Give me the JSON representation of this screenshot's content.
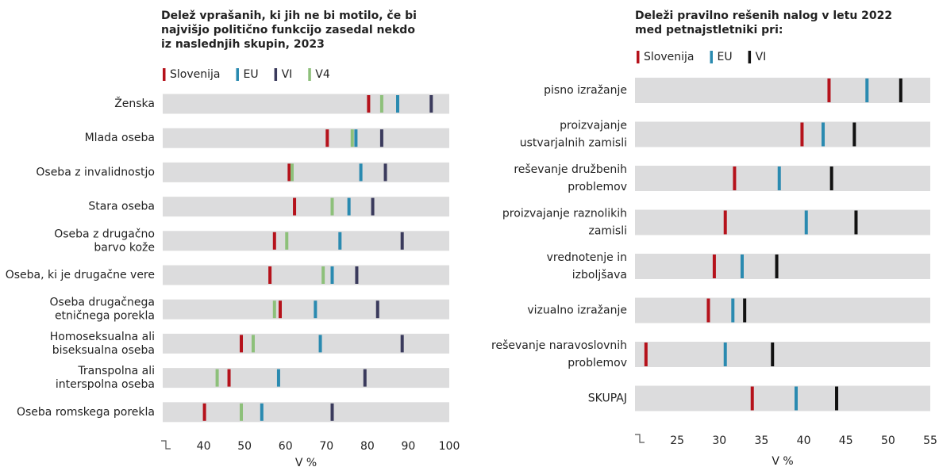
{
  "chart_data": [
    {
      "type": "strip",
      "title": "Delež vprašanih, ki jih ne bi motilo, če bi\nnajvišjo politično funkcijo zasedal nekdo\niz naslednjih skupin, 2023",
      "categories": [
        "Ženska",
        "Mlada oseba",
        "Oseba z invalidnostjo",
        "Stara oseba",
        "Oseba z drugačno\nbarvo kože",
        "Oseba, ki je drugačne vere",
        "Oseba drugačnega\netničnega porekla",
        "Homoseksualna ali\nbiseksualna oseba",
        "Transpolna ali\ninterspolna oseba",
        "Oseba romskega porekla"
      ],
      "series": [
        {
          "name": "Slovenija",
          "color": "#b5121b",
          "values": [
            80.3,
            70.2,
            60.9,
            62.2,
            57.3,
            56.2,
            58.7,
            49.2,
            46.2,
            40.2
          ]
        },
        {
          "name": "EU",
          "color": "#2a8ab0",
          "values": [
            87.4,
            77.2,
            78.4,
            75.5,
            73.3,
            71.4,
            67.3,
            68.5,
            58.3,
            54.2
          ]
        },
        {
          "name": "VI",
          "color": "#3a3a5c",
          "values": [
            95.6,
            83.5,
            84.4,
            81.3,
            88.5,
            77.4,
            82.5,
            88.5,
            79.4,
            71.4
          ]
        },
        {
          "name": "V4",
          "color": "#8dc07a",
          "values": [
            83.5,
            76.3,
            61.6,
            71.4,
            60.3,
            69.2,
            57.3,
            52.1,
            43.3,
            49.2
          ]
        }
      ],
      "xlabel": "V %",
      "xlim": [
        30,
        100
      ],
      "xticks": [
        40,
        50,
        60,
        70,
        80,
        90,
        100
      ]
    },
    {
      "type": "strip",
      "title": "Deleži pravilno rešenih nalog v letu 2022\nmed petnajstletniki pri:",
      "categories": [
        "pisno izražanje",
        "proizvajanje\nustvarjalnih zamisli",
        "reševanje družbenih\nproblemov",
        "proizvajanje raznolikih\nzamisli",
        "vrednotenje in\nizboljšava",
        "vizualno izražanje",
        "reševanje naravoslovnih\nproblemov",
        "SKUPAJ"
      ],
      "series": [
        {
          "name": "Slovenija",
          "color": "#b5121b",
          "values": [
            43,
            39.8,
            31.8,
            30.7,
            29.4,
            28.7,
            21.3,
            33.9
          ]
        },
        {
          "name": "EU",
          "color": "#2a8ab0",
          "values": [
            47.5,
            42.3,
            37.1,
            40.3,
            32.7,
            31.6,
            30.7,
            39.1
          ]
        },
        {
          "name": "VI",
          "color": "#111111",
          "values": [
            51.5,
            46,
            43.3,
            46.2,
            36.8,
            33,
            36.3,
            43.9
          ]
        }
      ],
      "xlabel": "V %",
      "xlim": [
        20,
        55
      ],
      "xticks": [
        25,
        30,
        35,
        40,
        45,
        50,
        55
      ]
    }
  ]
}
